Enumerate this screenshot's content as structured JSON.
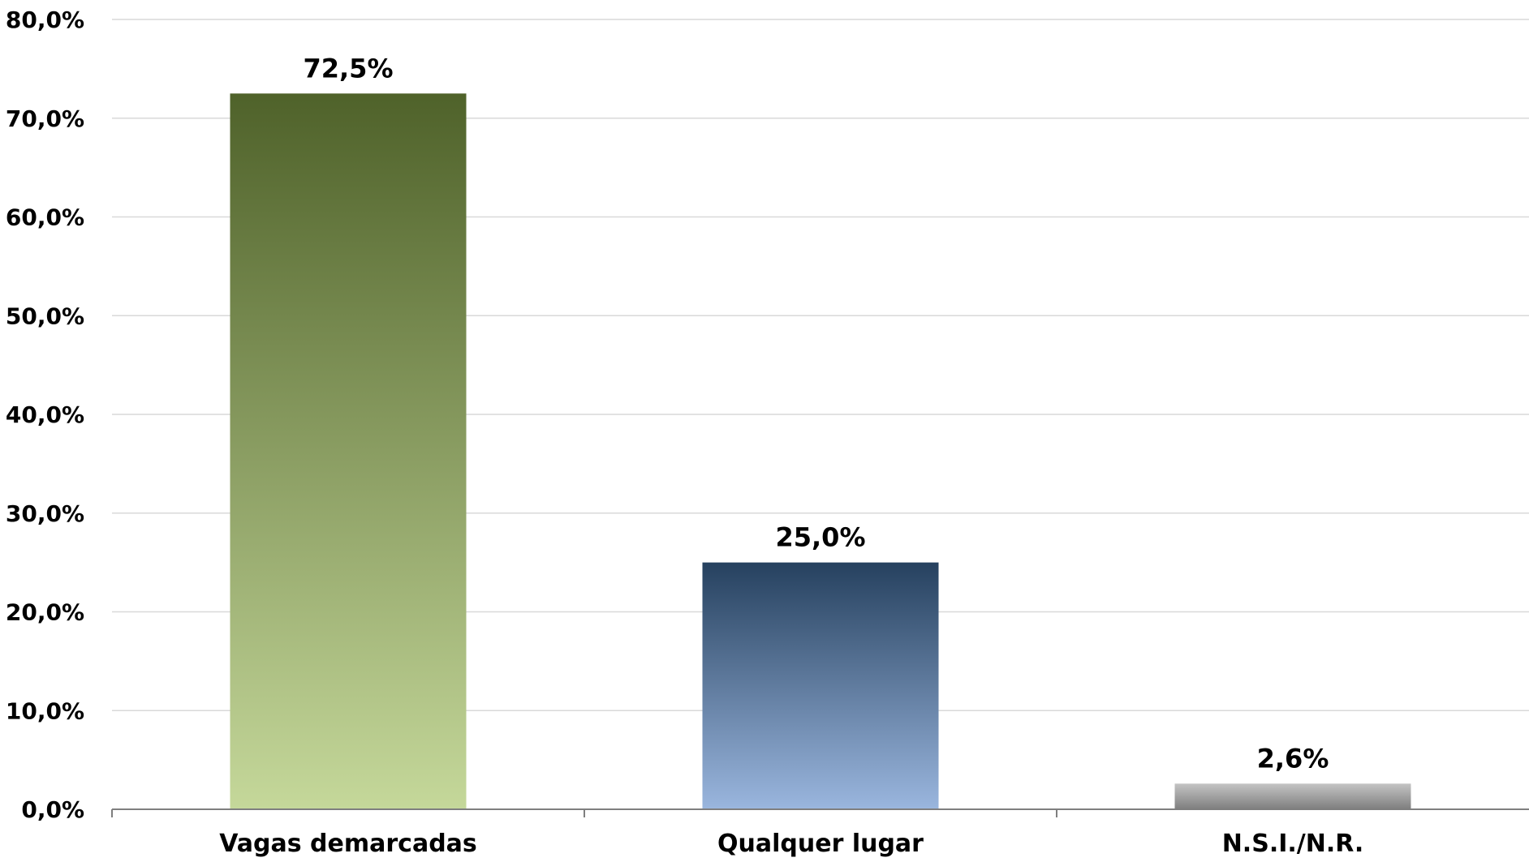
{
  "chart_data": {
    "type": "bar",
    "categories": [
      "Vagas demarcadas",
      "Qualquer lugar",
      "N.S.I./N.R."
    ],
    "values": [
      72.5,
      25.0,
      2.6
    ],
    "value_labels": [
      "72,5%",
      "25,0%",
      "2,6%"
    ],
    "title": "",
    "xlabel": "",
    "ylabel": "",
    "ylim": [
      0,
      80
    ],
    "yticks": [
      0,
      10,
      20,
      30,
      40,
      50,
      60,
      70,
      80
    ],
    "ytick_labels": [
      "0,0%",
      "10,0%",
      "20,0%",
      "30,0%",
      "40,0%",
      "50,0%",
      "60,0%",
      "70,0%",
      "80,0%"
    ],
    "grid": true,
    "legend": "none",
    "bar_gradients": [
      {
        "top": "#4f622a",
        "bottom": "#c5d89a"
      },
      {
        "top": "#26415f",
        "bottom": "#9ab6de"
      },
      {
        "top": "#c4c4c4",
        "bottom": "#7e7e7e"
      }
    ],
    "grid_color": "#d9d9d9",
    "axis_color": "#7f7f7f"
  }
}
